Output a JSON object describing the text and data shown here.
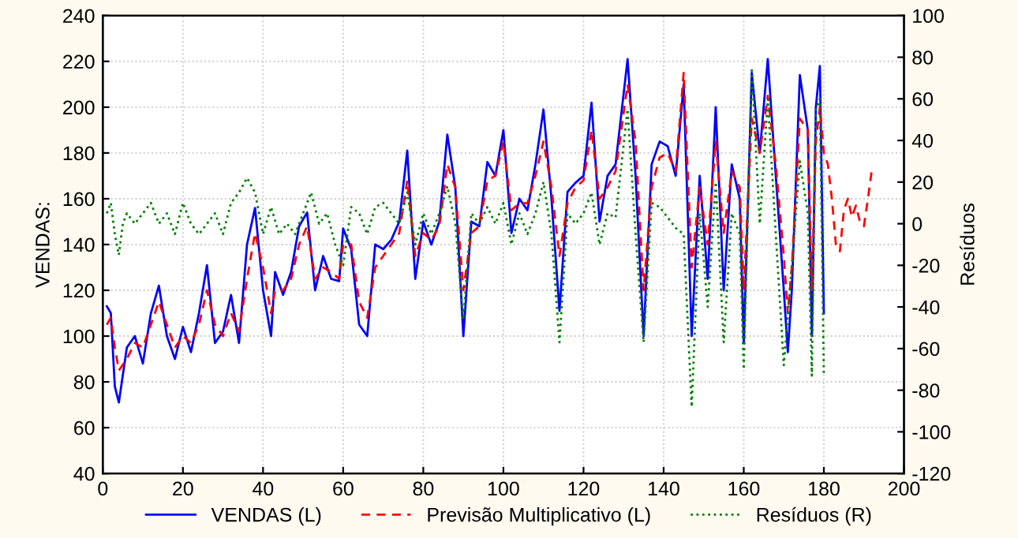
{
  "chart_data": {
    "type": "line",
    "ylabel": "VENDAS:",
    "y2label": "Resíduos",
    "xlim": [
      0,
      200
    ],
    "xticks": [
      0,
      20,
      40,
      60,
      80,
      100,
      120,
      140,
      160,
      180,
      200
    ],
    "ylim": [
      40,
      240
    ],
    "yticks": [
      40,
      60,
      80,
      100,
      120,
      140,
      160,
      180,
      200,
      220,
      240
    ],
    "y2lim": [
      -120,
      100
    ],
    "y2ticks": [
      -120,
      -100,
      -80,
      -60,
      -40,
      -20,
      0,
      20,
      40,
      60,
      80,
      100
    ],
    "grid": true,
    "legend": "bottom",
    "marker": "none",
    "series": [
      {
        "name": "VENDAS (L)",
        "color": "#0000ff",
        "line_style": "solid",
        "x": [
          1,
          2,
          3,
          4,
          6,
          8,
          10,
          12,
          14,
          16,
          18,
          20,
          22,
          24,
          26,
          28,
          30,
          32,
          34,
          36,
          38,
          40,
          42,
          43,
          45,
          47,
          49,
          51,
          53,
          55,
          57,
          59,
          60,
          62,
          64,
          66,
          68,
          70,
          72,
          74,
          76,
          78,
          80,
          82,
          84,
          86,
          88,
          90,
          92,
          94,
          96,
          98,
          100,
          102,
          104,
          106,
          108,
          110,
          112,
          114,
          116,
          118,
          120,
          122,
          124,
          126,
          128,
          131,
          133,
          135,
          137,
          139,
          141,
          143,
          145,
          147,
          149,
          151,
          153,
          155,
          157,
          159,
          160,
          162,
          164,
          166,
          168,
          170,
          171,
          172,
          174,
          176,
          177,
          178,
          179,
          180
        ],
        "values": [
          113,
          110,
          78,
          71,
          95,
          100,
          88,
          110,
          122,
          100,
          90,
          104,
          93,
          110,
          131,
          97,
          102,
          118,
          97,
          140,
          156,
          120,
          100,
          128,
          118,
          128,
          148,
          154,
          120,
          135,
          125,
          124,
          147,
          138,
          105,
          100,
          140,
          138,
          142,
          150,
          181,
          125,
          150,
          140,
          150,
          188,
          165,
          100,
          150,
          148,
          176,
          170,
          190,
          145,
          160,
          155,
          175,
          199,
          160,
          111,
          163,
          167,
          170,
          202,
          150,
          170,
          175,
          221,
          170,
          100,
          175,
          185,
          183,
          170,
          210,
          100,
          170,
          125,
          200,
          120,
          175,
          160,
          97,
          215,
          180,
          221,
          170,
          120,
          93,
          120,
          214,
          190,
          100,
          200,
          218,
          110
        ]
      },
      {
        "name": "Previsão Multiplicativo (L)",
        "color": "#ff0000",
        "line_style": "dashed",
        "x": [
          1,
          2,
          3,
          4,
          6,
          8,
          10,
          12,
          14,
          16,
          18,
          20,
          22,
          24,
          26,
          28,
          30,
          32,
          34,
          36,
          38,
          40,
          42,
          43,
          45,
          47,
          49,
          51,
          53,
          55,
          57,
          59,
          60,
          62,
          64,
          66,
          68,
          70,
          72,
          74,
          76,
          78,
          80,
          82,
          84,
          86,
          88,
          90,
          92,
          94,
          96,
          98,
          100,
          102,
          104,
          106,
          108,
          110,
          112,
          114,
          116,
          118,
          120,
          122,
          124,
          126,
          128,
          131,
          133,
          135,
          137,
          139,
          141,
          143,
          145,
          147,
          149,
          151,
          153,
          155,
          157,
          159,
          160,
          162,
          164,
          166,
          168,
          170,
          171,
          172,
          174,
          176,
          177,
          178,
          179,
          180,
          181,
          182,
          183,
          184,
          185,
          186,
          187,
          188,
          189,
          190,
          191,
          192
        ],
        "values": [
          105,
          108,
          95,
          85,
          90,
          97,
          95,
          105,
          115,
          105,
          95,
          100,
          97,
          105,
          120,
          105,
          100,
          110,
          102,
          125,
          145,
          130,
          110,
          120,
          120,
          125,
          140,
          148,
          125,
          130,
          128,
          125,
          140,
          140,
          115,
          108,
          130,
          135,
          140,
          145,
          168,
          135,
          145,
          142,
          148,
          175,
          165,
          120,
          145,
          148,
          168,
          170,
          185,
          155,
          158,
          158,
          170,
          185,
          165,
          135,
          158,
          165,
          168,
          190,
          160,
          165,
          172,
          210,
          185,
          120,
          165,
          178,
          180,
          172,
          215,
          130,
          165,
          140,
          185,
          145,
          172,
          165,
          120,
          195,
          180,
          205,
          175,
          135,
          110,
          130,
          195,
          190,
          120,
          185,
          200,
          180,
          175,
          160,
          140,
          137,
          155,
          160,
          152,
          157,
          150,
          148,
          160,
          173
        ]
      },
      {
        "name": "Resíduos (R)",
        "color": "#008000",
        "line_style": "dotted",
        "axis": "y2",
        "x": [
          1,
          2,
          3,
          4,
          5,
          6,
          8,
          10,
          12,
          14,
          16,
          18,
          20,
          22,
          24,
          26,
          28,
          30,
          32,
          34,
          36,
          38,
          40,
          42,
          44,
          46,
          48,
          50,
          52,
          54,
          56,
          58,
          60,
          62,
          64,
          66,
          68,
          70,
          72,
          74,
          76,
          78,
          80,
          82,
          84,
          86,
          88,
          90,
          92,
          94,
          96,
          98,
          100,
          102,
          104,
          106,
          108,
          110,
          112,
          114,
          116,
          118,
          120,
          122,
          124,
          126,
          128,
          131,
          133,
          135,
          137,
          139,
          141,
          143,
          145,
          147,
          149,
          151,
          153,
          155,
          157,
          159,
          160,
          162,
          164,
          166,
          168,
          170,
          172,
          174,
          176,
          177,
          178,
          179,
          180
        ],
        "values": [
          5,
          10,
          -5,
          -15,
          0,
          5,
          0,
          5,
          10,
          0,
          5,
          -5,
          10,
          0,
          -5,
          0,
          5,
          -5,
          10,
          15,
          22,
          15,
          -5,
          8,
          -5,
          0,
          -5,
          5,
          15,
          0,
          5,
          -10,
          -20,
          8,
          5,
          -5,
          8,
          10,
          5,
          0,
          15,
          -10,
          5,
          -5,
          5,
          18,
          0,
          -46,
          5,
          0,
          8,
          0,
          10,
          -10,
          5,
          -5,
          5,
          20,
          -5,
          -57,
          5,
          0,
          5,
          15,
          -10,
          5,
          3,
          55,
          -5,
          -57,
          10,
          8,
          3,
          -2,
          -5,
          -88,
          5,
          -40,
          20,
          -57,
          5,
          -5,
          -70,
          75,
          0,
          60,
          -5,
          -68,
          -20,
          30,
          5,
          -73,
          55,
          60,
          -73
        ]
      }
    ]
  }
}
